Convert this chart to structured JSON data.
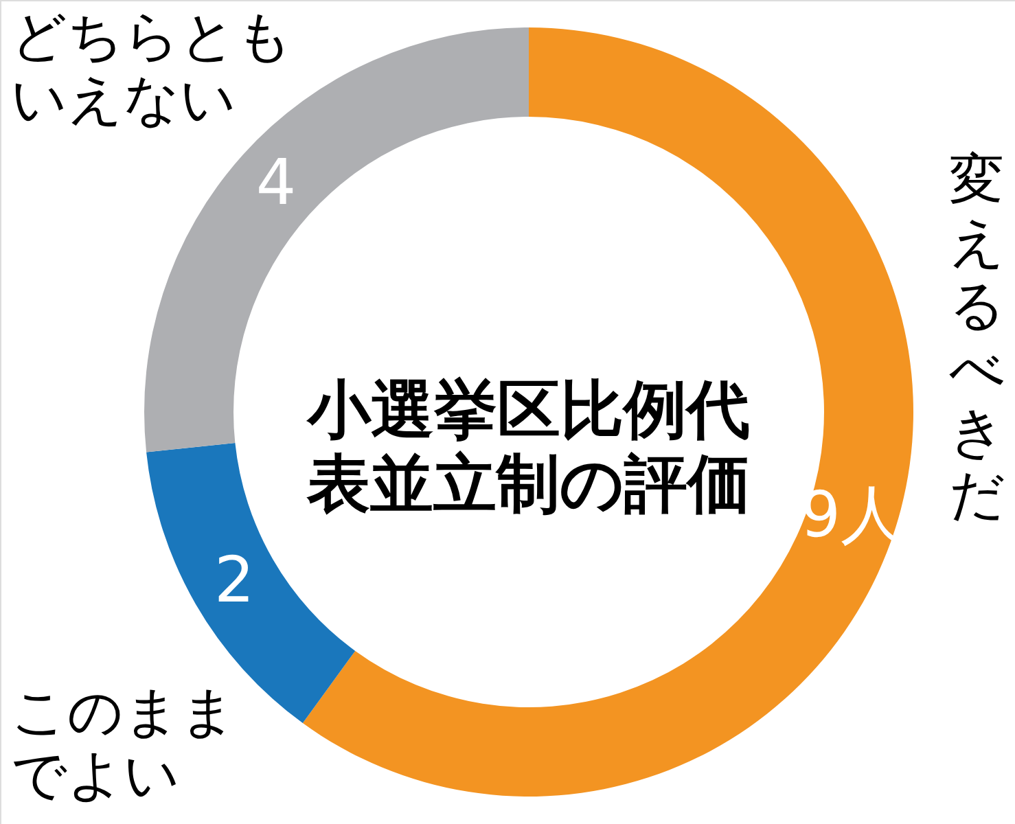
{
  "chart_data": {
    "type": "donut",
    "title": "小選挙区比例代表並立制の評価",
    "categories": [
      "変えるべきだ",
      "このままでよい",
      "どちらともいえない"
    ],
    "values": [
      9,
      2,
      4
    ],
    "colors": [
      "#f39422",
      "#1a77bc",
      "#aeafb2"
    ],
    "value_labels": [
      "9人",
      "2",
      "4"
    ]
  }
}
